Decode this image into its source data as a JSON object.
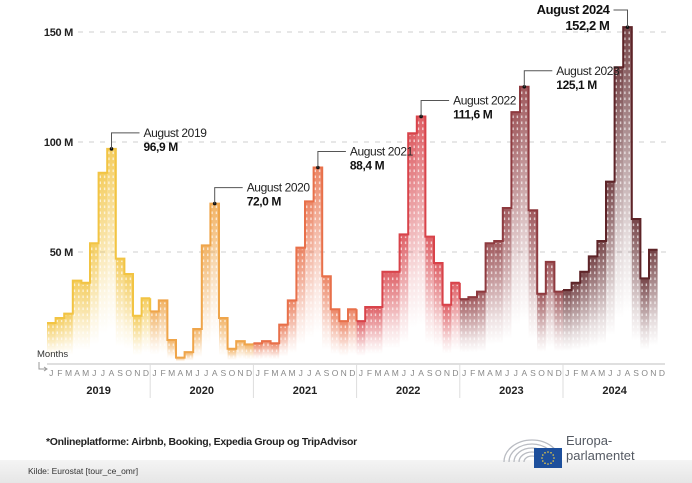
{
  "chart_data": {
    "type": "line",
    "style": "step",
    "title": "",
    "xlabel": "Months",
    "ylabel": "",
    "ylim": [
      0,
      160
    ],
    "y_ticks": [
      {
        "value": 50,
        "label": "50 M"
      },
      {
        "value": 100,
        "label": "100 M"
      },
      {
        "value": 150,
        "label": "150 M"
      }
    ],
    "grid": "horizontal-dashed",
    "month_labels": [
      "J",
      "F",
      "M",
      "A",
      "M",
      "J",
      "J",
      "A",
      "S",
      "O",
      "N",
      "D"
    ],
    "series": [
      {
        "name": "2019",
        "color": "#f2c443",
        "values": [
          17.7,
          20,
          22,
          37,
          36,
          54,
          86,
          96.9,
          47,
          40,
          21,
          29
        ]
      },
      {
        "name": "2020",
        "color": "#efa54a",
        "values": [
          23,
          28,
          10,
          2,
          4.5,
          15,
          53,
          72.0,
          20,
          6,
          9.5,
          8
        ]
      },
      {
        "name": "2021",
        "color": "#e8704a",
        "values": [
          8.5,
          9.5,
          8.5,
          17,
          28,
          52,
          73,
          88.4,
          39,
          24,
          18.6,
          24
        ]
      },
      {
        "name": "2022",
        "color": "#d8434a",
        "values": [
          18.6,
          25,
          25,
          41,
          41,
          58,
          104,
          111.6,
          57,
          45,
          26,
          36
        ]
      },
      {
        "name": "2023",
        "color": "#8e3a3f",
        "values": [
          28.6,
          29.5,
          32,
          54,
          55,
          70,
          113.6,
          125.1,
          69,
          31,
          45.5,
          32
        ]
      },
      {
        "name": "2024",
        "color": "#5e2428",
        "values": [
          32.7,
          36,
          41,
          48,
          55,
          82,
          134,
          152.2,
          65,
          38,
          51,
          null
        ]
      }
    ],
    "annotations": [
      {
        "series": "2019",
        "month_index": 7,
        "title": "August 2019",
        "value_label": "96,9 M"
      },
      {
        "series": "2020",
        "month_index": 7,
        "title": "August 2020",
        "value_label": "72,0 M"
      },
      {
        "series": "2021",
        "month_index": 7,
        "title": "August 2021",
        "value_label": "88,4 M"
      },
      {
        "series": "2022",
        "month_index": 7,
        "title": "August 2022",
        "value_label": "111,6 M"
      },
      {
        "series": "2023",
        "month_index": 7,
        "title": "August 2023",
        "value_label": "125,1 M"
      },
      {
        "series": "2024",
        "month_index": 7,
        "title": "August 2024",
        "value_label": "152,2 M",
        "emphasis": true
      }
    ]
  },
  "footer": {
    "footnote": "*Onlineplatforme: Airbnb, Booking, Expedia Group og TripAdvisor",
    "source": "Kilde: Eurostat [tour_ce_omr]",
    "logo_line1": "Europa-",
    "logo_line2": "parlamentet",
    "logo_icon": "european-parliament-hemicycle-eu-flag-icon",
    "flag_color": "#1d4f9c",
    "star_color": "#f5d142"
  }
}
